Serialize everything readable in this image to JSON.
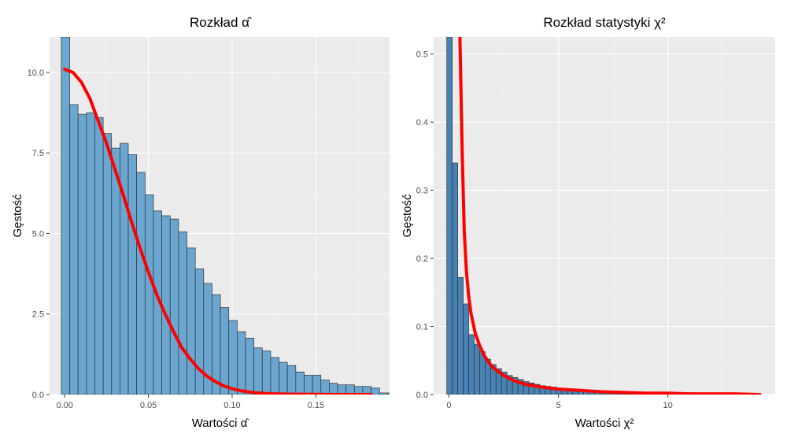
{
  "chart_data": [
    {
      "type": "histogram",
      "title": "Rozkład α̂",
      "xlabel": "Wartości α̂",
      "ylabel": "Gęstość",
      "xlim": [
        -0.009,
        0.194
      ],
      "ylim": [
        0,
        11.1
      ],
      "xticks": [
        0.0,
        0.05,
        0.1,
        0.15
      ],
      "xtick_labels": [
        "0.00",
        "0.05",
        "0.10",
        "0.15"
      ],
      "yticks": [
        0.0,
        2.5,
        5.0,
        7.5,
        10.0
      ],
      "ytick_labels": [
        "0.0",
        "2.5",
        "5.0",
        "7.5",
        "10.0"
      ],
      "grid": true,
      "bar_fill": "#6aa6cf",
      "curve_color": "#ff0000",
      "bins": {
        "start": -0.002,
        "width": 0.005,
        "density": [
          11.1,
          9.0,
          8.7,
          8.75,
          8.6,
          8.1,
          7.65,
          7.8,
          7.45,
          6.9,
          6.2,
          5.7,
          5.55,
          5.45,
          5.05,
          4.55,
          3.9,
          3.45,
          3.1,
          2.7,
          2.3,
          1.95,
          1.75,
          1.45,
          1.35,
          1.15,
          1.0,
          0.9,
          0.7,
          0.6,
          0.6,
          0.45,
          0.35,
          0.3,
          0.3,
          0.25,
          0.25,
          0.2,
          0.05,
          0.05,
          0.05,
          0.03,
          0.03,
          0.12,
          0.03,
          0.03,
          0.02,
          0.02
        ]
      },
      "curve": {
        "x": [
          0.0,
          0.005,
          0.01,
          0.015,
          0.02,
          0.025,
          0.03,
          0.035,
          0.04,
          0.045,
          0.05,
          0.055,
          0.06,
          0.065,
          0.07,
          0.075,
          0.08,
          0.085,
          0.09,
          0.095,
          0.1,
          0.105,
          0.11,
          0.115,
          0.12,
          0.13,
          0.14,
          0.15,
          0.16,
          0.17,
          0.183
        ],
        "y": [
          10.1,
          10.0,
          9.7,
          9.2,
          8.5,
          7.8,
          7.0,
          6.2,
          5.35,
          4.55,
          3.8,
          3.1,
          2.5,
          1.95,
          1.45,
          1.1,
          0.8,
          0.57,
          0.4,
          0.27,
          0.18,
          0.12,
          0.08,
          0.05,
          0.03,
          0.015,
          0.01,
          0.005,
          0.0,
          0.0,
          0.0
        ]
      }
    },
    {
      "type": "histogram",
      "title": "Rozkład statystyki χ²",
      "xlabel": "Wartości χ²",
      "ylabel": "Gęstość",
      "xlim": [
        -0.7,
        14.9
      ],
      "ylim": [
        0,
        0.525
      ],
      "xticks": [
        0,
        5,
        10
      ],
      "xtick_labels": [
        "0",
        "5",
        "10"
      ],
      "yticks": [
        0.0,
        0.1,
        0.2,
        0.3,
        0.4,
        0.5
      ],
      "ytick_labels": [
        "0.0",
        "0.1",
        "0.2",
        "0.3",
        "0.4",
        "0.5"
      ],
      "grid": true,
      "bar_fill": "#4682b4",
      "curve_color": "#ff0000",
      "bins": {
        "start": -0.1,
        "width": 0.25,
        "density": [
          0.525,
          0.34,
          0.172,
          0.133,
          0.088,
          0.074,
          0.063,
          0.052,
          0.044,
          0.038,
          0.033,
          0.028,
          0.025,
          0.022,
          0.019,
          0.017,
          0.015,
          0.013,
          0.012,
          0.011,
          0.009,
          0.008,
          0.007,
          0.007,
          0.006,
          0.005,
          0.005,
          0.004,
          0.004,
          0.003,
          0.003,
          0.003,
          0.002,
          0.002,
          0.002,
          0.002,
          0.001,
          0.001,
          0.001,
          0.001,
          0.001,
          0.001,
          0.001,
          0.001
        ]
      },
      "curve": {
        "x": [
          0.5,
          0.6,
          0.7,
          0.8,
          0.9,
          1.0,
          1.2,
          1.4,
          1.6,
          1.8,
          2.0,
          2.5,
          3.0,
          3.5,
          4.0,
          5.0,
          6.0,
          7.0,
          8.0,
          9.0,
          10.0,
          11.0,
          12.0,
          13.0,
          14.2
        ],
        "y": [
          0.525,
          0.36,
          0.24,
          0.18,
          0.145,
          0.12,
          0.09,
          0.072,
          0.058,
          0.048,
          0.04,
          0.028,
          0.02,
          0.015,
          0.012,
          0.008,
          0.006,
          0.004,
          0.003,
          0.002,
          0.002,
          0.001,
          0.001,
          0.001,
          0.0
        ]
      }
    }
  ]
}
